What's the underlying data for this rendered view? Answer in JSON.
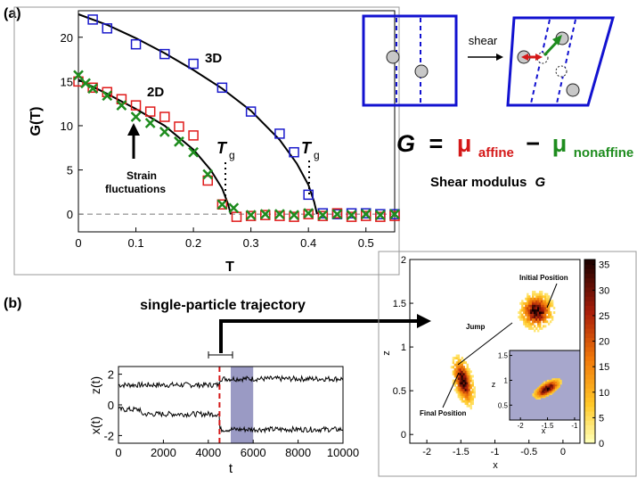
{
  "panel_labels": [
    "(a)",
    "(b)"
  ],
  "chart_data": [
    {
      "type": "scatter",
      "xlabel": "T",
      "ylabel": "G(T)",
      "xlim": [
        0,
        0.55
      ],
      "ylim": [
        -2,
        23
      ],
      "xticks": [
        "0",
        "0.1",
        "0.2",
        "0.3",
        "0.4",
        "0.5"
      ],
      "yticks": [
        "0",
        "5",
        "10",
        "15",
        "20"
      ],
      "xtick_values": [
        0,
        0.1,
        0.2,
        0.3,
        0.4,
        0.5
      ],
      "ytick_values": [
        0,
        5,
        10,
        15,
        20
      ],
      "series": [
        {
          "name": "3D",
          "marker": "square",
          "color": "#1a1acc",
          "x": [
            0.025,
            0.05,
            0.1,
            0.15,
            0.2,
            0.25,
            0.3,
            0.35,
            0.375,
            0.4,
            0.425,
            0.45,
            0.475,
            0.5,
            0.525,
            0.55
          ],
          "y": [
            22,
            21,
            19.2,
            18.1,
            17,
            14.3,
            11.6,
            9.1,
            7,
            2.2,
            0.1,
            0,
            0.1,
            0.1,
            0,
            0
          ]
        },
        {
          "name": "2D",
          "marker": "square",
          "color": "#e01a1a",
          "x": [
            0,
            0.025,
            0.05,
            0.075,
            0.1,
            0.125,
            0.15,
            0.175,
            0.2,
            0.225,
            0.25,
            0.275,
            0.3,
            0.325,
            0.35,
            0.375,
            0.4,
            0.425,
            0.45,
            0.475,
            0.5,
            0.525,
            0.55
          ],
          "y": [
            15,
            14.3,
            13.8,
            13,
            12.3,
            11.6,
            11,
            9.9,
            8.9,
            3.8,
            1.1,
            -0.3,
            -0.2,
            -0.1,
            -0.2,
            -0.3,
            0,
            -0.2,
            0.1,
            -0.3,
            -0.2,
            -0.3,
            -0.2
          ]
        },
        {
          "name": "Strain fluctuations",
          "marker": "x",
          "color": "#1e8c1e",
          "x": [
            0,
            0.0125,
            0.025,
            0.05,
            0.075,
            0.1,
            0.125,
            0.15,
            0.175,
            0.2,
            0.225,
            0.25,
            0.27,
            0.3,
            0.325,
            0.35,
            0.375,
            0.4,
            0.425,
            0.45,
            0.475,
            0.5,
            0.525,
            0.55
          ],
          "y": [
            15.7,
            14.8,
            14.2,
            13.4,
            12.3,
            11,
            10.3,
            9.3,
            8.2,
            7,
            4.5,
            1.1,
            0.7,
            -0.1,
            0,
            0,
            -0.1,
            0.1,
            -0.1,
            0,
            -0.1,
            0,
            -0.1,
            0
          ]
        }
      ],
      "fit_curves": [
        {
          "name": "3D fit",
          "x": [
            0,
            0.05,
            0.1,
            0.15,
            0.2,
            0.25,
            0.3,
            0.35,
            0.38,
            0.4,
            0.41,
            0.415
          ],
          "y": [
            22.6,
            21.4,
            19.9,
            18.2,
            16.3,
            14.2,
            11.7,
            8.4,
            5.7,
            3.3,
            1.4,
            0
          ]
        },
        {
          "name": "2D fit",
          "x": [
            0,
            0.05,
            0.1,
            0.15,
            0.2,
            0.23,
            0.25,
            0.26,
            0.265
          ],
          "y": [
            15.2,
            13.6,
            11.9,
            10,
            7.3,
            5,
            2.9,
            1.2,
            0
          ]
        }
      ],
      "annotations": {
        "label_3d": "3D",
        "label_2d": "2D",
        "tg": "T",
        "tg_sub": "g",
        "strain_line1": "Strain",
        "strain_line2": "fluctuations"
      }
    },
    {
      "type": "line",
      "xlabel": "t",
      "ylabels": [
        "z(t)",
        "x(t)"
      ],
      "xlim": [
        0,
        10000
      ],
      "ylim": [
        -2.5,
        2.5
      ],
      "xticks": [
        "0",
        "2000",
        "4000",
        "6000",
        "8000",
        "10000"
      ],
      "xtick_values": [
        0,
        2000,
        4000,
        6000,
        8000,
        10000
      ],
      "yticks": [
        "2",
        "0",
        "-2"
      ],
      "ytick_values": [
        2,
        0,
        -2
      ],
      "jump_time": 4500,
      "highlight_window": [
        5000,
        6000
      ],
      "series": [
        {
          "name": "z(t)",
          "segments": [
            [
              0,
              4500,
              1.3
            ],
            [
              4500,
              10000,
              1.7
            ]
          ]
        },
        {
          "name": "x(t)",
          "segments": [
            [
              0,
              1000,
              -0.3
            ],
            [
              1000,
              4500,
              -0.6
            ],
            [
              4500,
              10000,
              -1.6
            ]
          ]
        }
      ]
    },
    {
      "type": "heatmap",
      "xlabel": "x",
      "ylabel": "z",
      "xlim": [
        -2.25,
        0.25
      ],
      "ylim": [
        -0.1,
        2
      ],
      "xticks": [
        "-2",
        "-1.5",
        "-1",
        "-0.5",
        "0"
      ],
      "xtick_values": [
        -2,
        -1.5,
        -1,
        -0.5,
        0
      ],
      "yticks": [
        "0",
        "0.5",
        "1",
        "1.5",
        "2"
      ],
      "ytick_values": [
        0,
        0.5,
        1,
        1.5,
        2
      ],
      "colorbar_ticks": [
        "0",
        "5",
        "10",
        "15",
        "20",
        "25",
        "30",
        "35"
      ],
      "colorbar_range": [
        0,
        36
      ],
      "clusters": [
        {
          "label": "Initial Position",
          "x": -0.4,
          "z": 1.4
        },
        {
          "label": "Final Position",
          "x": -1.5,
          "z": 0.6
        }
      ],
      "jump_label": "Jump",
      "inset": {
        "xlabel": "x",
        "ylabel": "z",
        "xticks": [
          "-2",
          "-1.5",
          "-1"
        ],
        "xtick_values": [
          -2,
          -1.5,
          -1
        ],
        "yticks": [
          "0.5",
          "1",
          "1.5"
        ],
        "ytick_values": [
          0.5,
          1,
          1.5
        ],
        "xlim": [
          -2.2,
          -0.9
        ],
        "ylim": [
          0.2,
          1.6
        ]
      }
    }
  ],
  "schematic": {
    "shear_label": "shear",
    "equation": {
      "G": "G",
      "eq": "=",
      "mu1": "μ",
      "sub1": "affine",
      "minus": "−",
      "mu2": "μ",
      "sub2": "nonaffine"
    },
    "caption": "Shear modulus",
    "caption_symbol": "G",
    "colors": {
      "frame": "#1212d0",
      "red": "#d41818",
      "green": "#1e8c1e"
    }
  },
  "trajectory_title": "single-particle trajectory"
}
